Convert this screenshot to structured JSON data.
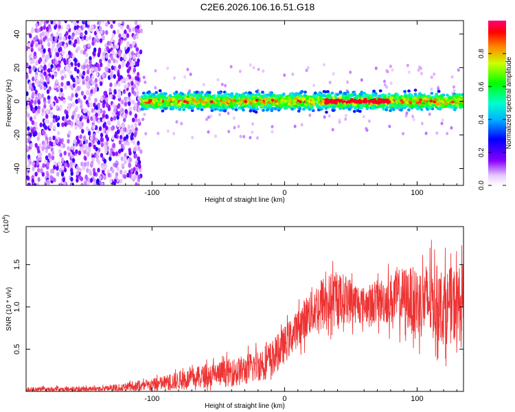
{
  "title": "C2E6.2026.106.16.51.G18",
  "colors": {
    "snr_line": "#ee3333",
    "background": "#ffffff",
    "axis": "#000000"
  },
  "chart_data": [
    {
      "type": "heatmap",
      "name": "spectrogram",
      "xlabel": "Height of straight line (km)",
      "ylabel": "Frequency (Hz)",
      "xlim": [
        -195,
        135
      ],
      "ylim": [
        -50,
        48
      ],
      "xticks": [
        -100,
        0,
        100
      ],
      "xtick_labels": [
        "-100",
        "0",
        "100"
      ],
      "yticks": [
        -40,
        -20,
        0,
        20,
        40
      ],
      "ytick_labels": [
        "-40",
        "-20",
        "0",
        "20",
        "40"
      ],
      "colorbar": {
        "label": "Normalized spectral amplitude",
        "range": [
          0.0,
          1.0
        ],
        "ticks": [
          0.0,
          0.2,
          0.4,
          0.6,
          0.8
        ],
        "tick_labels": [
          "0.0",
          "0.2",
          "0.4",
          "0.6",
          "0.8"
        ]
      },
      "description_regions": [
        {
          "x_range": [
            -195,
            -108
          ],
          "freq_range": [
            -50,
            48
          ],
          "amplitude": [
            0.05,
            0.3
          ]
        },
        {
          "x_range": [
            -108,
            135
          ],
          "freq_range": [
            -5,
            5
          ],
          "amplitude": [
            0.2,
            1.0
          ]
        }
      ]
    },
    {
      "type": "line",
      "name": "snr",
      "xlabel": "Height of straight line (km)",
      "ylabel": "SNR (10 * v/v)",
      "multiplier_label": "(x10",
      "multiplier_exponent": "4",
      "multiplier_close": ")",
      "xlim": [
        -195,
        135
      ],
      "ylim": [
        0,
        1.95
      ],
      "xticks": [
        -100,
        0,
        100
      ],
      "xtick_labels": [
        "-100",
        "0",
        "100"
      ],
      "yticks": [
        0.5,
        1.0,
        1.5
      ],
      "ytick_labels": [
        "0.5",
        "1.0",
        "1.5"
      ],
      "envelope": {
        "x": [
          -195,
          -140,
          -105,
          -60,
          -30,
          -10,
          0,
          10,
          20,
          30,
          45,
          60,
          75,
          90,
          100,
          110,
          120,
          135
        ],
        "mean": [
          0.02,
          0.03,
          0.06,
          0.18,
          0.25,
          0.38,
          0.55,
          0.75,
          0.95,
          1.05,
          1.1,
          1.02,
          1.08,
          1.12,
          1.05,
          1.08,
          1.0,
          1.05
        ],
        "spread": [
          0.03,
          0.03,
          0.07,
          0.14,
          0.18,
          0.22,
          0.22,
          0.22,
          0.28,
          0.34,
          0.3,
          0.22,
          0.28,
          0.36,
          0.42,
          0.46,
          0.45,
          0.45
        ]
      }
    }
  ]
}
